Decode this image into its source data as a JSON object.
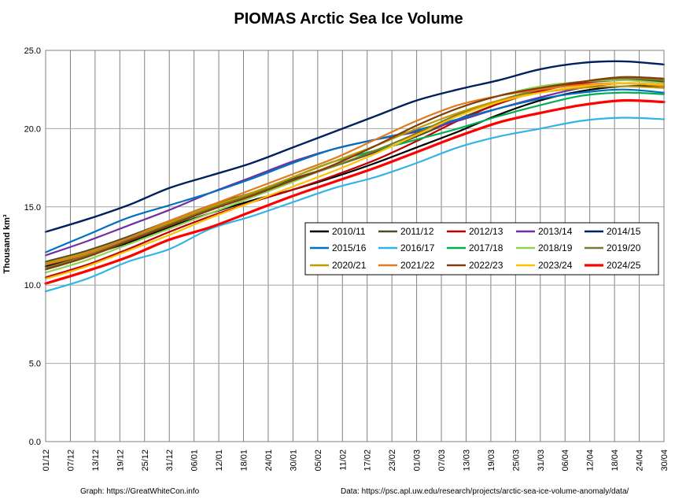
{
  "chart_data": {
    "type": "line",
    "title": "PIOMAS Arctic Sea Ice Volume",
    "ylabel": "Thousand km³",
    "xlabel": "",
    "ylim": [
      0,
      25
    ],
    "yticks": [
      "0.0",
      "5.0",
      "10.0",
      "15.0",
      "20.0",
      "25.0"
    ],
    "ytick_values": [
      0,
      5,
      10,
      15,
      20,
      25
    ],
    "xticks": [
      "01/12",
      "07/12",
      "13/12",
      "19/12",
      "25/12",
      "31/12",
      "06/01",
      "12/01",
      "18/01",
      "24/01",
      "30/01",
      "05/02",
      "11/02",
      "17/02",
      "23/02",
      "01/03",
      "07/03",
      "13/03",
      "19/03",
      "25/03",
      "31/03",
      "06/04",
      "12/04",
      "18/04",
      "24/04",
      "30/04"
    ],
    "x_domain_days": [
      0,
      150
    ],
    "grid": "vertical and horizontal",
    "legend_placement": "right-middle",
    "series": [
      {
        "name": "2010/11",
        "color": "#000000",
        "width": 2.2,
        "x": [
          0,
          10,
          20,
          30,
          40,
          50,
          60,
          70,
          80,
          90,
          100,
          110,
          120,
          130,
          140,
          150
        ],
        "values": [
          11.2,
          11.9,
          12.7,
          13.7,
          14.6,
          15.4,
          16.1,
          16.9,
          17.8,
          18.8,
          19.8,
          20.9,
          21.8,
          22.4,
          22.7,
          22.7
        ]
      },
      {
        "name": "2011/12",
        "color": "#4d4d2e",
        "width": 2.2,
        "x": [
          0,
          10,
          20,
          30,
          40,
          50,
          60,
          70,
          80,
          90,
          100,
          110,
          120,
          130,
          140,
          150
        ],
        "values": [
          11.5,
          12.2,
          13.1,
          14.1,
          15.1,
          15.9,
          16.8,
          17.6,
          18.5,
          19.5,
          20.6,
          21.6,
          22.4,
          22.9,
          23.1,
          23.0
        ]
      },
      {
        "name": "2012/13",
        "color": "#c00000",
        "width": 2.2,
        "x": [
          0,
          10,
          20,
          30,
          40,
          50,
          60,
          70,
          80,
          90,
          100,
          110,
          120,
          130,
          140,
          150
        ],
        "values": [
          10.5,
          11.3,
          12.3,
          13.4,
          14.4,
          15.3,
          16.1,
          17.0,
          18.0,
          19.2,
          20.5,
          21.6,
          22.4,
          22.9,
          23.2,
          23.1
        ]
      },
      {
        "name": "2013/14",
        "color": "#7030a0",
        "width": 2.2,
        "x": [
          0,
          10,
          20,
          30,
          40,
          50,
          60,
          70,
          80,
          90,
          100,
          110,
          120,
          130,
          140,
          150
        ],
        "values": [
          11.9,
          12.8,
          13.8,
          14.8,
          15.9,
          16.9,
          17.9,
          18.7,
          19.3,
          19.8,
          20.5,
          21.3,
          22.0,
          22.6,
          22.9,
          22.8
        ]
      },
      {
        "name": "2014/15",
        "color": "#002060",
        "width": 2.4,
        "x": [
          0,
          10,
          20,
          30,
          40,
          50,
          60,
          70,
          80,
          90,
          100,
          110,
          120,
          130,
          140,
          150
        ],
        "values": [
          13.4,
          14.2,
          15.1,
          16.2,
          17.0,
          17.8,
          18.8,
          19.8,
          20.8,
          21.8,
          22.5,
          23.1,
          23.8,
          24.2,
          24.3,
          24.1
        ]
      },
      {
        "name": "2015/16",
        "color": "#0070c0",
        "width": 2.2,
        "x": [
          0,
          10,
          20,
          30,
          40,
          50,
          60,
          70,
          80,
          90,
          100,
          110,
          120,
          130,
          140,
          150
        ],
        "values": [
          12.1,
          13.2,
          14.3,
          15.1,
          15.9,
          16.8,
          17.8,
          18.7,
          19.3,
          19.9,
          20.6,
          21.3,
          21.9,
          22.3,
          22.5,
          22.3
        ]
      },
      {
        "name": "2016/17",
        "color": "#33b4e6",
        "width": 2.2,
        "x": [
          0,
          10,
          20,
          30,
          40,
          50,
          60,
          70,
          80,
          90,
          100,
          110,
          120,
          130,
          140,
          150
        ],
        "values": [
          9.6,
          10.4,
          11.5,
          12.3,
          13.6,
          14.4,
          15.3,
          16.2,
          16.9,
          17.8,
          18.8,
          19.5,
          20.0,
          20.5,
          20.7,
          20.6
        ]
      },
      {
        "name": "2017/18",
        "color": "#00b050",
        "width": 2.2,
        "x": [
          0,
          10,
          20,
          30,
          40,
          50,
          60,
          70,
          80,
          90,
          100,
          110,
          120,
          130,
          140,
          150
        ],
        "values": [
          11.0,
          11.8,
          12.8,
          13.8,
          14.8,
          15.8,
          16.9,
          17.9,
          18.6,
          19.3,
          20.0,
          20.8,
          21.5,
          22.1,
          22.3,
          22.2
        ]
      },
      {
        "name": "2018/19",
        "color": "#92d050",
        "width": 2.2,
        "x": [
          0,
          10,
          20,
          30,
          40,
          50,
          60,
          70,
          80,
          90,
          100,
          110,
          120,
          130,
          140,
          150
        ],
        "values": [
          10.8,
          11.6,
          12.6,
          13.6,
          14.6,
          15.6,
          16.6,
          17.7,
          18.9,
          20.2,
          21.3,
          22.1,
          22.7,
          23.0,
          23.1,
          22.9
        ]
      },
      {
        "name": "2019/20",
        "color": "#7a7a2a",
        "width": 2.2,
        "x": [
          0,
          10,
          20,
          30,
          40,
          50,
          60,
          70,
          80,
          90,
          100,
          110,
          120,
          130,
          140,
          150
        ],
        "values": [
          11.1,
          11.9,
          12.9,
          13.9,
          14.9,
          15.8,
          16.7,
          17.6,
          18.6,
          19.7,
          20.9,
          21.8,
          22.5,
          23.0,
          23.2,
          23.1
        ]
      },
      {
        "name": "2020/21",
        "color": "#c09a00",
        "width": 2.2,
        "x": [
          0,
          10,
          20,
          30,
          40,
          50,
          60,
          70,
          80,
          90,
          100,
          110,
          120,
          130,
          140,
          150
        ],
        "values": [
          11.4,
          12.1,
          13.0,
          14.0,
          15.0,
          15.9,
          16.9,
          17.9,
          18.9,
          20.0,
          21.0,
          21.8,
          22.3,
          22.6,
          22.7,
          22.6
        ]
      },
      {
        "name": "2021/22",
        "color": "#e07a20",
        "width": 2.2,
        "x": [
          0,
          10,
          20,
          30,
          40,
          50,
          60,
          70,
          80,
          90,
          100,
          110,
          120,
          130,
          140,
          150
        ],
        "values": [
          11.3,
          12.0,
          13.0,
          14.1,
          15.1,
          16.1,
          17.1,
          18.1,
          19.3,
          20.5,
          21.5,
          22.1,
          22.5,
          22.8,
          22.9,
          22.7
        ]
      },
      {
        "name": "2022/23",
        "color": "#843c0c",
        "width": 2.2,
        "x": [
          0,
          10,
          20,
          30,
          40,
          50,
          60,
          70,
          80,
          90,
          100,
          110,
          120,
          130,
          140,
          150
        ],
        "values": [
          11.0,
          11.8,
          12.8,
          13.8,
          14.8,
          15.7,
          16.7,
          17.7,
          18.9,
          20.2,
          21.3,
          22.1,
          22.6,
          23.0,
          23.3,
          23.2
        ]
      },
      {
        "name": "2023/24",
        "color": "#ffc000",
        "width": 2.2,
        "x": [
          0,
          10,
          20,
          30,
          40,
          50,
          60,
          70,
          80,
          90,
          100,
          110,
          120,
          130,
          140,
          150
        ],
        "values": [
          10.4,
          11.2,
          12.2,
          13.2,
          14.3,
          15.3,
          16.3,
          17.3,
          18.4,
          19.6,
          20.8,
          21.7,
          22.3,
          22.7,
          22.9,
          22.8
        ]
      },
      {
        "name": "2024/25",
        "color": "#ff0000",
        "width": 3.2,
        "x": [
          0,
          10,
          20,
          30,
          40,
          50,
          60,
          70,
          80,
          90,
          100,
          110,
          120,
          130,
          140,
          150
        ],
        "values": [
          10.1,
          10.9,
          11.8,
          12.9,
          13.7,
          14.7,
          15.7,
          16.6,
          17.5,
          18.5,
          19.5,
          20.4,
          21.0,
          21.5,
          21.8,
          21.7
        ]
      }
    ],
    "footer_left": "Graph: https://GreatWhiteCon.info",
    "footer_right": "Data: https://psc.apl.uw.edu/research/projects/arctic-sea-ice-volume-anomaly/data/"
  }
}
